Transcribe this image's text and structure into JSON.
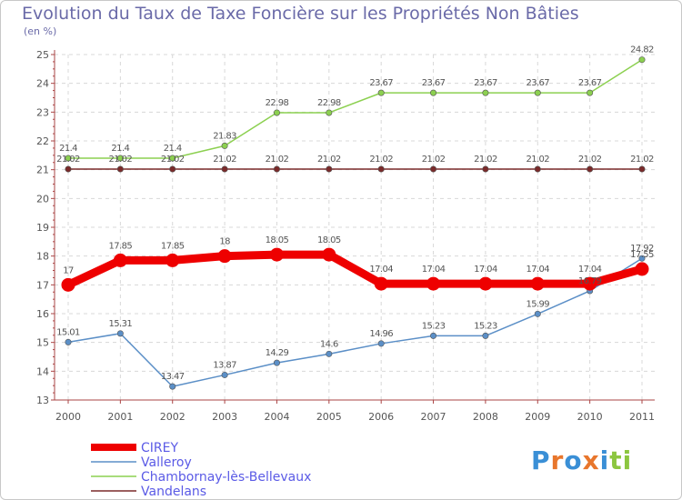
{
  "header": {
    "title": "Evolution du Taux de Taxe Foncière sur les Propriétés Non Bâties",
    "unit": "(en %)"
  },
  "brand": {
    "letters": [
      "P",
      "r",
      "o",
      "x",
      "i",
      "t",
      "i"
    ],
    "colors": [
      "#3a8fd6",
      "#e8762c",
      "#3a8fd6",
      "#e8762c",
      "#3a8fd6",
      "#8cc63f",
      "#8cc63f"
    ]
  },
  "chart_data": {
    "type": "line",
    "title": "Evolution du Taux de Taxe Foncière sur les Propriétés Non Bâties",
    "xlabel": "",
    "ylabel": "(en %)",
    "categories": [
      "2000",
      "2001",
      "2002",
      "2003",
      "2004",
      "2005",
      "2006",
      "2007",
      "2008",
      "2009",
      "2010",
      "2011"
    ],
    "yticks": [
      "13",
      "14",
      "15",
      "16",
      "17",
      "18",
      "19",
      "20",
      "21",
      "22",
      "23",
      "24",
      "25"
    ],
    "ylim": [
      13,
      25
    ],
    "grid": true,
    "legend_position": "bottom-left",
    "series": [
      {
        "name": "CIREY",
        "color": "#ee0000",
        "emphasis": "thick",
        "values": [
          17,
          17.85,
          17.85,
          18,
          18.05,
          18.05,
          17.04,
          17.04,
          17.04,
          17.04,
          17.04,
          17.55
        ],
        "labels": [
          "17",
          "17.85",
          "17.85",
          "18",
          "18.05",
          "18.05",
          "17.04",
          "17.04",
          "17.04",
          "17.04",
          "17.04",
          "17.55"
        ]
      },
      {
        "name": "Valleroy",
        "color": "#5b8fc7",
        "emphasis": "thin",
        "values": [
          15.01,
          15.31,
          13.47,
          13.87,
          14.29,
          14.6,
          14.96,
          15.23,
          15.23,
          15.99,
          16.79,
          17.92
        ],
        "labels": [
          "15.01",
          "15.31",
          "13.47",
          "13.87",
          "14.29",
          "14.6",
          "14.96",
          "15.23",
          "15.23",
          "15.99",
          "16.79",
          "17.92"
        ]
      },
      {
        "name": "Chambornay-lès-Bellevaux",
        "color": "#8cd050",
        "emphasis": "thin",
        "values": [
          21.4,
          21.4,
          21.4,
          21.83,
          22.98,
          22.98,
          23.67,
          23.67,
          23.67,
          23.67,
          23.67,
          24.82
        ],
        "labels": [
          "21.4",
          "21.4",
          "21.4",
          "21.83",
          "22.98",
          "22.98",
          "23.67",
          "23.67",
          "23.67",
          "23.67",
          "23.67",
          "24.82"
        ]
      },
      {
        "name": "Vandelans",
        "color": "#7a2a2a",
        "emphasis": "thin",
        "values": [
          21.02,
          21.02,
          21.02,
          21.02,
          21.02,
          21.02,
          21.02,
          21.02,
          21.02,
          21.02,
          21.02,
          21.02
        ],
        "labels": [
          "21.02",
          "21.02",
          "21.02",
          "21.02",
          "21.02",
          "21.02",
          "21.02",
          "21.02",
          "21.02",
          "21.02",
          "21.02",
          "21.02"
        ]
      }
    ]
  }
}
